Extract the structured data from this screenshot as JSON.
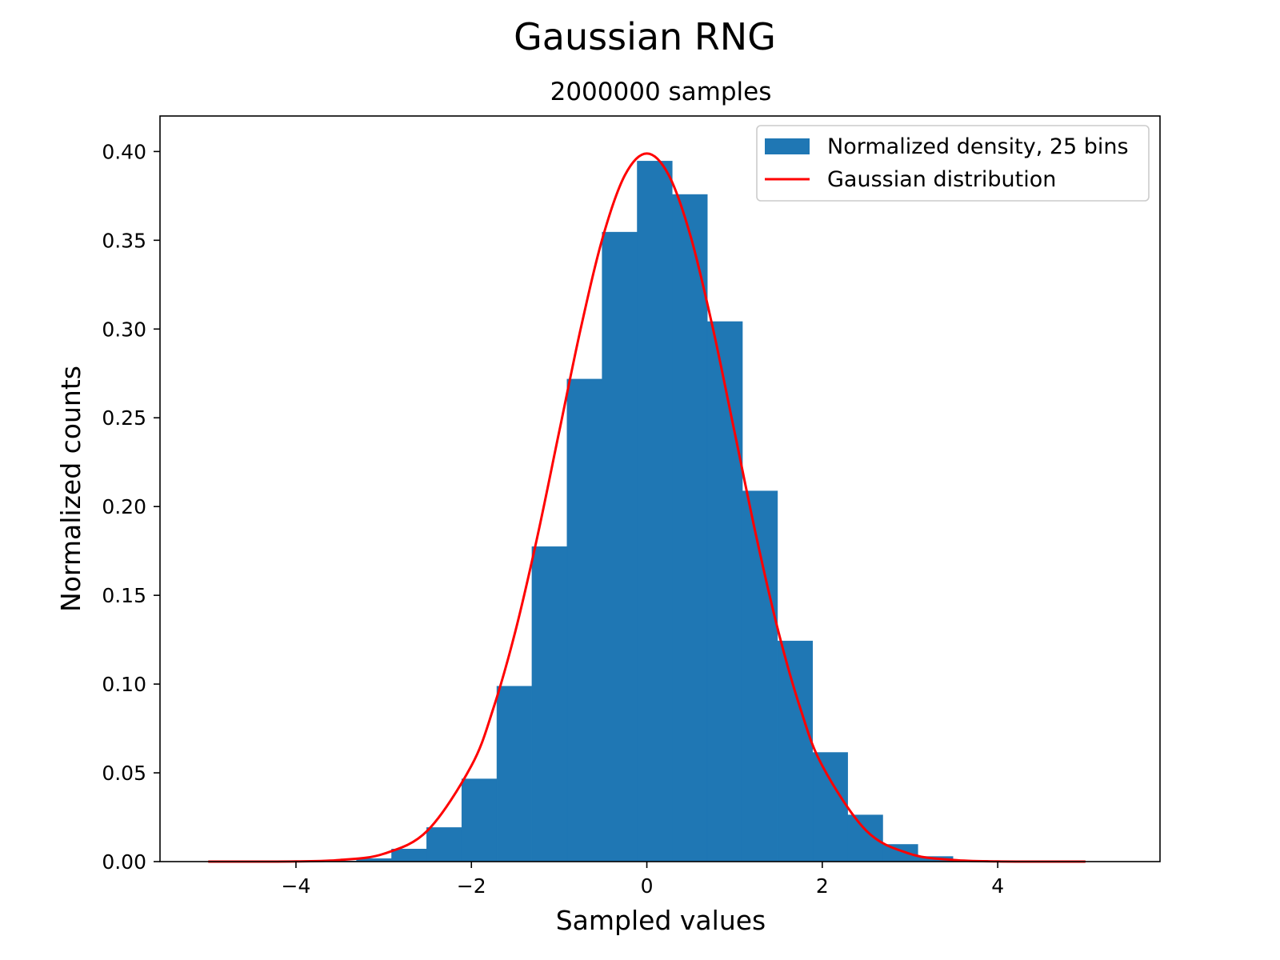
{
  "chart_data": {
    "type": "bar",
    "title": "Gaussian RNG",
    "subtitle": "2000000 samples",
    "xlabel": "Sampled values",
    "ylabel": "Normalized counts",
    "xlim": [
      -5.55,
      5.85
    ],
    "ylim": [
      0.0,
      0.42
    ],
    "grid": false,
    "legend_position": "top-right",
    "x_ticks": [
      {
        "value": -4,
        "label": "−4"
      },
      {
        "value": -2,
        "label": "−2"
      },
      {
        "value": 0,
        "label": "0"
      },
      {
        "value": 2,
        "label": "2"
      },
      {
        "value": 4,
        "label": "4"
      }
    ],
    "y_ticks": [
      {
        "value": 0.0,
        "label": "0.00"
      },
      {
        "value": 0.05,
        "label": "0.05"
      },
      {
        "value": 0.1,
        "label": "0.10"
      },
      {
        "value": 0.15,
        "label": "0.15"
      },
      {
        "value": 0.2,
        "label": "0.20"
      },
      {
        "value": 0.25,
        "label": "0.25"
      },
      {
        "value": 0.3,
        "label": "0.30"
      },
      {
        "value": 0.35,
        "label": "0.35"
      },
      {
        "value": 0.4,
        "label": "0.40"
      }
    ],
    "histogram": {
      "name": "Normalized density, 25 bins",
      "color": "#1f77b4",
      "bin_edges": [
        -4.91,
        -4.51,
        -4.11,
        -3.71,
        -3.31,
        -2.91,
        -2.51,
        -2.11,
        -1.71,
        -1.31,
        -0.91,
        -0.51,
        -0.11,
        0.29,
        0.69,
        1.09,
        1.49,
        1.89,
        2.29,
        2.69,
        3.09,
        3.49,
        3.89,
        4.29,
        4.69,
        5.09
      ],
      "values": [
        0.0,
        0.0,
        0.0,
        0.0003,
        0.0017,
        0.0071,
        0.0192,
        0.0466,
        0.0988,
        0.1774,
        0.2718,
        0.3546,
        0.3946,
        0.3758,
        0.3042,
        0.2088,
        0.1243,
        0.0615,
        0.0263,
        0.0097,
        0.0029,
        0.0007,
        0.0001,
        0.0,
        0.0
      ]
    },
    "series": [
      {
        "name": "Gaussian distribution",
        "type": "line",
        "color": "#ff0000",
        "x": [
          -5.0,
          -4.5,
          -4.0,
          -3.5,
          -3.0,
          -2.5,
          -2.0,
          -1.75,
          -1.5,
          -1.25,
          -1.0,
          -0.75,
          -0.5,
          -0.25,
          0.0,
          0.25,
          0.5,
          0.75,
          1.0,
          1.25,
          1.5,
          1.75,
          2.0,
          2.5,
          3.0,
          3.5,
          4.0,
          4.5,
          5.0
        ],
        "y": [
          0.0,
          0.0,
          0.0001,
          0.0009,
          0.0044,
          0.0175,
          0.054,
          0.0863,
          0.1295,
          0.1826,
          0.242,
          0.3011,
          0.3521,
          0.3867,
          0.3989,
          0.3867,
          0.3521,
          0.3011,
          0.242,
          0.1826,
          0.1295,
          0.0863,
          0.054,
          0.0175,
          0.0044,
          0.0009,
          0.0001,
          0.0,
          0.0
        ]
      }
    ]
  }
}
